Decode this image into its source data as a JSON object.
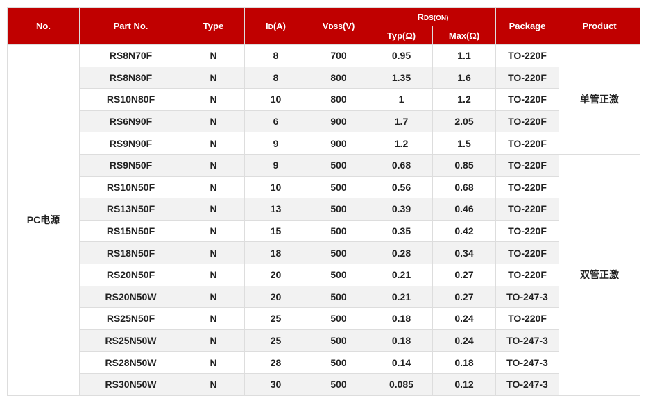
{
  "header": {
    "no": "No.",
    "part": "Part No.",
    "type": "Type",
    "id_main": "I",
    "id_sub": "D",
    "id_unit": "(A)",
    "vdss_main": "V",
    "vdss_sub": "DSS",
    "vdss_unit": "(V)",
    "rds_main": "R",
    "rds_sub": "DS(ON)",
    "typ": "Typ(Ω)",
    "max": "Max(Ω)",
    "package": "Package",
    "product": "Product"
  },
  "group": "PC电源",
  "products": [
    "单管正激",
    "双管正激"
  ],
  "rows": [
    [
      "RS8N70F",
      "N",
      "8",
      "700",
      "0.95",
      "1.1",
      "TO-220F"
    ],
    [
      "RS8N80F",
      "N",
      "8",
      "800",
      "1.35",
      "1.6",
      "TO-220F"
    ],
    [
      "RS10N80F",
      "N",
      "10",
      "800",
      "1",
      "1.2",
      "TO-220F"
    ],
    [
      "RS6N90F",
      "N",
      "6",
      "900",
      "1.7",
      "2.05",
      "TO-220F"
    ],
    [
      "RS9N90F",
      "N",
      "9",
      "900",
      "1.2",
      "1.5",
      "TO-220F"
    ],
    [
      "RS9N50F",
      "N",
      "9",
      "500",
      "0.68",
      "0.85",
      "TO-220F"
    ],
    [
      "RS10N50F",
      "N",
      "10",
      "500",
      "0.56",
      "0.68",
      "TO-220F"
    ],
    [
      "RS13N50F",
      "N",
      "13",
      "500",
      "0.39",
      "0.46",
      "TO-220F"
    ],
    [
      "RS15N50F",
      "N",
      "15",
      "500",
      "0.35",
      "0.42",
      "TO-220F"
    ],
    [
      "RS18N50F",
      "N",
      "18",
      "500",
      "0.28",
      "0.34",
      "TO-220F"
    ],
    [
      "RS20N50F",
      "N",
      "20",
      "500",
      "0.21",
      "0.27",
      "TO-220F"
    ],
    [
      "RS20N50W",
      "N",
      "20",
      "500",
      "0.21",
      "0.27",
      "TO-247-3"
    ],
    [
      "RS25N50F",
      "N",
      "25",
      "500",
      "0.18",
      "0.24",
      "TO-220F"
    ],
    [
      "RS25N50W",
      "N",
      "25",
      "500",
      "0.18",
      "0.24",
      "TO-247-3"
    ],
    [
      "RS28N50W",
      "N",
      "28",
      "500",
      "0.14",
      "0.18",
      "TO-247-3"
    ],
    [
      "RS30N50W",
      "N",
      "30",
      "500",
      "0.085",
      "0.12",
      "TO-247-3"
    ]
  ]
}
